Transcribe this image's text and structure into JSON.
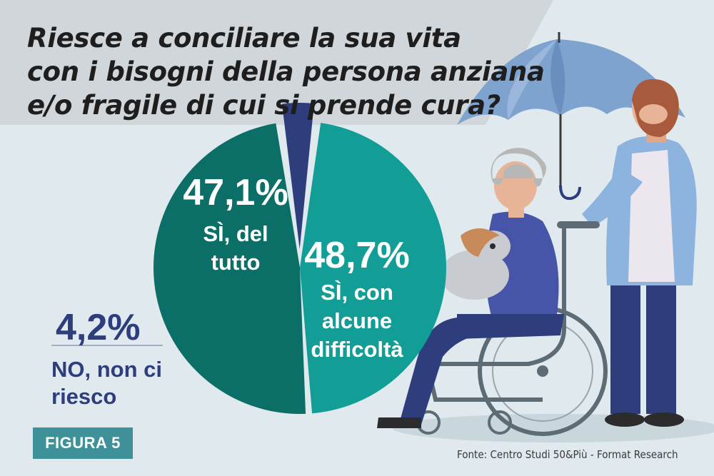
{
  "title_lines": [
    "Riesce a conciliare la sua vita",
    "con i bisogni della persona anziana",
    "e/o fragile di cui si prende cura?"
  ],
  "figure_label": "FIGURA 5",
  "source": "Fonte: Centro Studi 50&Più - Format Research",
  "colors": {
    "background": "#dfe9ee",
    "title_band": "#d0d6d9",
    "si_del_tutto": "#129e96",
    "si_con_difficolta": "#0c6f67",
    "no": "#2e3d7c",
    "badge": "#3e9099"
  },
  "chart_data": {
    "type": "pie",
    "slices": [
      {
        "key": "si_del_tutto",
        "value": 47.1,
        "value_label": "47,1%",
        "label_lines": [
          "SÌ, del",
          "tutto"
        ],
        "color": "#129e96",
        "exploded": false
      },
      {
        "key": "si_con_difficolta",
        "value": 48.7,
        "value_label": "48,7%",
        "label_lines": [
          "SÌ, con",
          "alcune",
          "difficoltà"
        ],
        "color": "#0c6f67",
        "exploded": false
      },
      {
        "key": "no",
        "value": 4.2,
        "value_label": "4,2%",
        "label_lines": [
          "NO, non ci",
          "riesco"
        ],
        "color": "#2e3d7c",
        "exploded": true
      }
    ]
  }
}
